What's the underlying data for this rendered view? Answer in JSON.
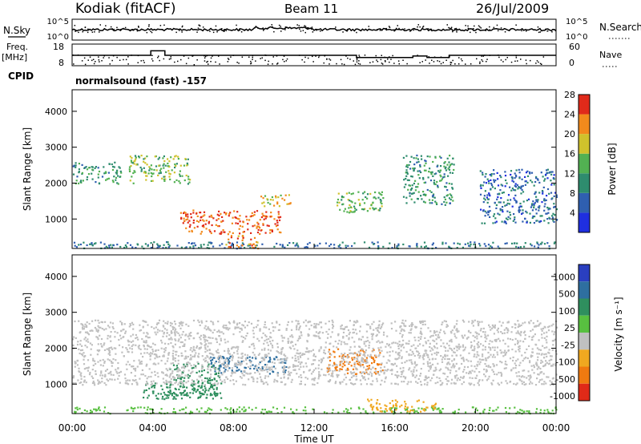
{
  "header": {
    "station": "Kodiak (fitACF)",
    "beam": "Beam 11",
    "date": "26/Jul/2009"
  },
  "left_labels": {
    "nsky": "N.Sky",
    "freq_line1": "Freq.",
    "freq_line2": "[MHz]",
    "cpid": "CPID"
  },
  "right_labels": {
    "nsearch": "N.Search",
    "nave": "Nave"
  },
  "cpid_text": "normalsound (fast) -157",
  "chart_data": [
    {
      "type": "line",
      "name": "noise-panel",
      "left_ticks": [
        "10^5",
        "10^0"
      ],
      "right_ticks": [
        "10^5",
        "10^0"
      ],
      "series": [
        {
          "name": "N.Sky",
          "style": "solid"
        },
        {
          "name": "N.Search",
          "style": "dotted"
        }
      ]
    },
    {
      "type": "line",
      "name": "freq-panel",
      "left_ticks": [
        18,
        8
      ],
      "right_ticks": [
        60,
        0
      ],
      "freq_steps": [
        {
          "t": 0.0,
          "f": 12.8
        },
        {
          "t": 3.9,
          "f": 12.8
        },
        {
          "t": 3.9,
          "f": 15.2
        },
        {
          "t": 4.6,
          "f": 15.2
        },
        {
          "t": 4.6,
          "f": 12.8
        },
        {
          "t": 14.1,
          "f": 12.8
        },
        {
          "t": 14.1,
          "f": 11.6
        },
        {
          "t": 16.9,
          "f": 11.6
        },
        {
          "t": 16.9,
          "f": 12.4
        },
        {
          "t": 17.6,
          "f": 12.4
        },
        {
          "t": 17.6,
          "f": 11.6
        },
        {
          "t": 18.7,
          "f": 11.6
        },
        {
          "t": 18.7,
          "f": 12.8
        },
        {
          "t": 24.0,
          "f": 12.8
        }
      ]
    },
    {
      "type": "heatmap",
      "name": "power-panel",
      "ylabel": "Slant Range [km]",
      "yticks": [
        1000,
        2000,
        3000,
        4000
      ],
      "ylim": [
        180,
        4600
      ],
      "xlim": [
        0,
        24
      ],
      "colorbar_label": "Power [dB]",
      "colorbar_ticks": [
        4,
        8,
        12,
        16,
        20,
        24,
        28
      ],
      "colorbar_colors": [
        "#1f2fe0",
        "#2f5fb0",
        "#2e8c6e",
        "#52b152",
        "#d0c22c",
        "#f28a1c",
        "#e02a1a"
      ],
      "blobs": [
        {
          "t0": 0.0,
          "t1": 24.0,
          "r0": 200,
          "r1": 380,
          "p": 10
        },
        {
          "t0": 5.3,
          "t1": 7.8,
          "r0": 600,
          "r1": 1280,
          "p": 26
        },
        {
          "t0": 7.9,
          "t1": 10.3,
          "r0": 600,
          "r1": 1250,
          "p": 26
        },
        {
          "t0": 7.6,
          "t1": 9.2,
          "r0": 200,
          "r1": 560,
          "p": 24
        },
        {
          "t0": 9.3,
          "t1": 10.8,
          "r0": 1350,
          "r1": 1700,
          "p": 20
        },
        {
          "t0": 2.8,
          "t1": 5.8,
          "r0": 2000,
          "r1": 2800,
          "p": 16
        },
        {
          "t0": 0.0,
          "t1": 2.4,
          "r0": 2000,
          "r1": 2600,
          "p": 13
        },
        {
          "t0": 13.0,
          "t1": 15.4,
          "r0": 1200,
          "r1": 1800,
          "p": 16
        },
        {
          "t0": 16.4,
          "t1": 18.9,
          "r0": 1400,
          "r1": 2800,
          "p": 13
        },
        {
          "t0": 20.2,
          "t1": 24.0,
          "r0": 900,
          "r1": 2400,
          "p": 9
        }
      ]
    },
    {
      "type": "heatmap",
      "name": "velocity-panel",
      "ylabel": "Slant Range [km]",
      "yticks": [
        1000,
        2000,
        3000,
        4000
      ],
      "ylim": [
        180,
        4600
      ],
      "xlim": [
        0,
        24
      ],
      "colorbar_label": "Velocity [m s⁻¹]",
      "colorbar_ticks": [
        "1000",
        "500",
        "100",
        "25",
        "-25",
        "-100",
        "-500",
        "-1000"
      ],
      "colorbar_colors": [
        "#2a3fc0",
        "#2e6fa0",
        "#2f8f5e",
        "#58c040",
        "#c0c0c0",
        "#f0a820",
        "#f07a10",
        "#e02a18"
      ],
      "blobs": [
        {
          "t0": 0.0,
          "t1": 24.0,
          "r0": 200,
          "r1": 380,
          "v": 25
        },
        {
          "t0": 4.8,
          "t1": 7.3,
          "r0": 700,
          "r1": 1600,
          "v": 100
        },
        {
          "t0": 6.8,
          "t1": 10.6,
          "r0": 1300,
          "r1": 1800,
          "v": 500
        },
        {
          "t0": 3.4,
          "t1": 7.4,
          "r0": 600,
          "r1": 1050,
          "v": 100
        },
        {
          "t0": 12.6,
          "t1": 15.4,
          "r0": 1300,
          "r1": 2000,
          "v": -500
        },
        {
          "t0": 0.0,
          "t1": 24.0,
          "r0": 1000,
          "r1": 2800,
          "v": 0
        },
        {
          "t0": 14.5,
          "t1": 18.0,
          "r0": 250,
          "r1": 600,
          "v": -100
        }
      ]
    }
  ],
  "xaxis": {
    "ticks": [
      "00:00",
      "04:00",
      "08:00",
      "12:00",
      "16:00",
      "20:00",
      "00:00"
    ],
    "label": "Time UT"
  },
  "colors": {
    "ink": "#000000",
    "background": "#ffffff",
    "grid_dot": "#000000"
  }
}
